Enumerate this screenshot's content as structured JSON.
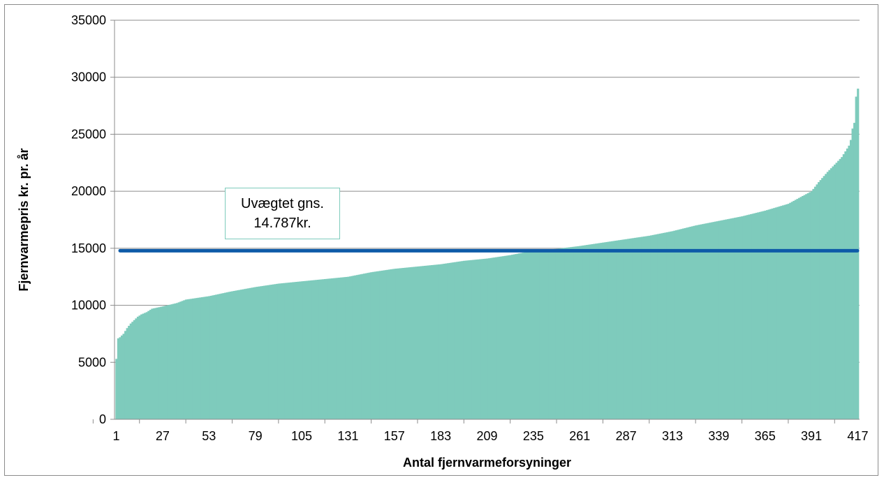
{
  "chart_data": {
    "type": "bar",
    "title": "",
    "ylabel": "Fjernvarmepris kr. pr. år",
    "xlabel": "Antal fjernvarmeforsyninger",
    "ylim": [
      0,
      35000
    ],
    "yticks": [
      0,
      5000,
      10000,
      15000,
      20000,
      25000,
      30000,
      35000
    ],
    "xlim": [
      1,
      417
    ],
    "xticks": [
      1,
      27,
      53,
      79,
      105,
      131,
      157,
      183,
      209,
      235,
      261,
      287,
      313,
      339,
      365,
      391,
      417
    ],
    "grid": true,
    "bar_color": "#7ecbbc",
    "reference_line": {
      "value": 14787,
      "color": "#0e5ba8"
    },
    "annotation_lines": [
      "Uvægtet gns.",
      "14.787kr."
    ],
    "profile": {
      "x": [
        1,
        2,
        3,
        5,
        7,
        9,
        11,
        13,
        15,
        18,
        21,
        27,
        35,
        40,
        53,
        65,
        79,
        92,
        105,
        118,
        131,
        144,
        157,
        170,
        183,
        196,
        209,
        222,
        235,
        248,
        261,
        274,
        287,
        300,
        313,
        326,
        339,
        352,
        365,
        378,
        385,
        391,
        395,
        400,
        405,
        408,
        410,
        412,
        413,
        414,
        415,
        416,
        417
      ],
      "values": [
        5300,
        7100,
        7200,
        7500,
        8000,
        8400,
        8700,
        9000,
        9200,
        9400,
        9700,
        9900,
        10200,
        10500,
        10800,
        11200,
        11600,
        11900,
        12100,
        12300,
        12500,
        12900,
        13200,
        13400,
        13600,
        13900,
        14100,
        14400,
        14800,
        14950,
        15200,
        15500,
        15800,
        16100,
        16500,
        17000,
        17400,
        17800,
        18300,
        18900,
        19500,
        20000,
        20800,
        21700,
        22500,
        23000,
        23500,
        24000,
        24500,
        25500,
        26000,
        28300,
        29000
      ]
    }
  }
}
